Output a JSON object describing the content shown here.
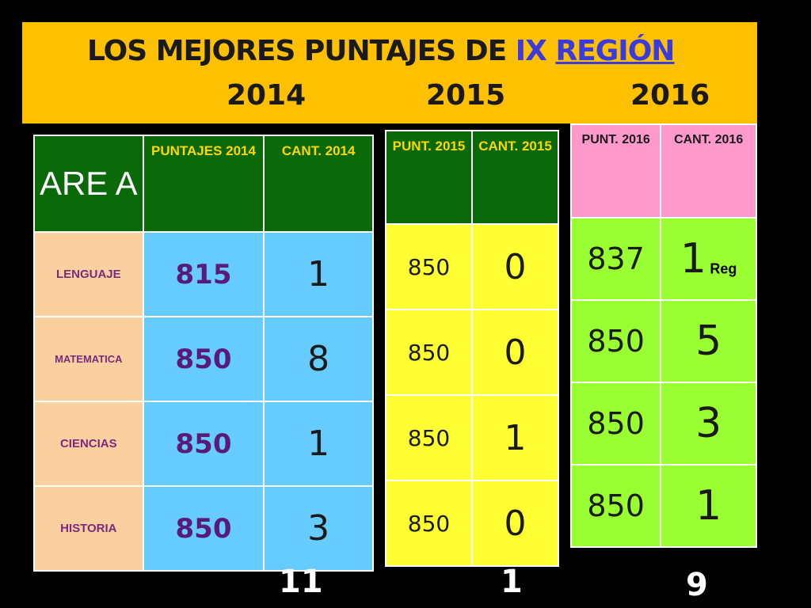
{
  "banner": {
    "title_pre": "LOS  MEJORES PUNTAJES DE  ",
    "title_ix": "IX",
    "title_space": "  ",
    "title_region": "REGIÓN",
    "years": [
      "2014",
      "2015",
      "2016"
    ]
  },
  "table2014": {
    "header": [
      "ARE A",
      "PUNTAJES 2014",
      "CANT. 2014"
    ],
    "rows": [
      {
        "area": "LENGUAJE",
        "score": "815",
        "count": "1"
      },
      {
        "area": "MATEMATICA",
        "score": "850",
        "count": "8"
      },
      {
        "area": "CIENCIAS",
        "score": "850",
        "count": "1"
      },
      {
        "area": "HISTORIA",
        "score": "850",
        "count": "3"
      }
    ],
    "total": "11"
  },
  "table2015": {
    "header": [
      "PUNT. 2015",
      "CANT. 2015"
    ],
    "rows": [
      {
        "score": "850",
        "count": "0"
      },
      {
        "score": "850",
        "count": "0"
      },
      {
        "score": "850",
        "count": "1"
      },
      {
        "score": "850",
        "count": "0"
      }
    ],
    "total": "1"
  },
  "table2016": {
    "header": [
      "PUNT. 2016",
      "CANT. 2016"
    ],
    "rows": [
      {
        "score": "837",
        "count": "1",
        "note": "Reg"
      },
      {
        "score": "850",
        "count": "5"
      },
      {
        "score": "850",
        "count": "3"
      },
      {
        "score": "850",
        "count": "1"
      }
    ],
    "total": "9"
  },
  "colors": {
    "banner": "#ffc000",
    "header_green": "#0a6a0a",
    "header_pink": "#ff99cc",
    "subject": "#fbd0a0",
    "blue": "#66ccff",
    "yellow": "#ffff33",
    "light_green": "#99ff33"
  }
}
